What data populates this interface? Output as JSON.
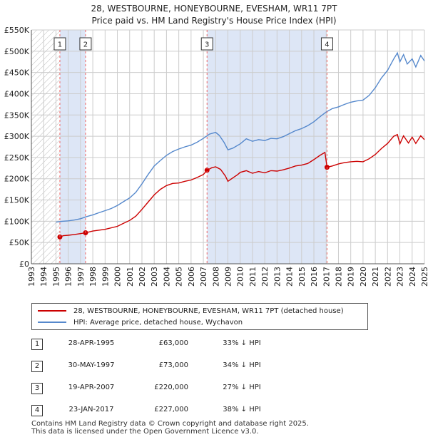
{
  "title_line1": "28, WESTBOURNE, HONEYBOURNE, EVESHAM, WR11 7PT",
  "title_line2": "Price paid vs. HM Land Registry's House Price Index (HPI)",
  "colors": {
    "property": "#cc0000",
    "hpi": "#5588cc",
    "shade": "#dde6f6",
    "grid": "#cccccc",
    "marker_line": "#ee6666"
  },
  "chart_data": {
    "type": "line",
    "xlim": [
      1993,
      2025
    ],
    "ylim": [
      0,
      550000
    ],
    "x_ticks": [
      1993,
      1994,
      1995,
      1996,
      1997,
      1998,
      1999,
      2000,
      2001,
      2002,
      2003,
      2004,
      2005,
      2006,
      2007,
      2008,
      2009,
      2010,
      2011,
      2012,
      2013,
      2014,
      2015,
      2016,
      2017,
      2018,
      2019,
      2020,
      2021,
      2022,
      2023,
      2024,
      2025
    ],
    "y_ticks": [
      {
        "value": 0,
        "label": "£0"
      },
      {
        "value": 50000,
        "label": "£50K"
      },
      {
        "value": 100000,
        "label": "£100K"
      },
      {
        "value": 150000,
        "label": "£150K"
      },
      {
        "value": 200000,
        "label": "£200K"
      },
      {
        "value": 250000,
        "label": "£250K"
      },
      {
        "value": 300000,
        "label": "£300K"
      },
      {
        "value": 350000,
        "label": "£350K"
      },
      {
        "value": 400000,
        "label": "£400K"
      },
      {
        "value": 450000,
        "label": "£450K"
      },
      {
        "value": 500000,
        "label": "£500K"
      },
      {
        "value": 550000,
        "label": "£550K"
      }
    ],
    "hatch_until": 1995.32,
    "shaded_regions": [
      [
        1995.32,
        1997.41
      ],
      [
        2007.3,
        2017.07
      ]
    ],
    "series": [
      {
        "name": "property",
        "points": [
          [
            1995.32,
            63000
          ],
          [
            1995.6,
            66000
          ],
          [
            1996,
            67000
          ],
          [
            1996.5,
            69000
          ],
          [
            1997,
            71000
          ],
          [
            1997.41,
            73000
          ],
          [
            1998,
            77000
          ],
          [
            1999,
            81000
          ],
          [
            2000,
            88000
          ],
          [
            2000.5,
            95000
          ],
          [
            2001,
            102000
          ],
          [
            2001.5,
            112000
          ],
          [
            2002,
            128000
          ],
          [
            2002.5,
            145000
          ],
          [
            2003,
            162000
          ],
          [
            2003.5,
            175000
          ],
          [
            2004,
            184000
          ],
          [
            2004.5,
            189000
          ],
          [
            2005,
            190000
          ],
          [
            2005.5,
            194000
          ],
          [
            2006,
            197000
          ],
          [
            2006.5,
            203000
          ],
          [
            2007,
            210000
          ],
          [
            2007.3,
            220000
          ],
          [
            2007.7,
            226000
          ],
          [
            2008,
            228000
          ],
          [
            2008.4,
            222000
          ],
          [
            2008.8,
            206000
          ],
          [
            2009,
            194000
          ],
          [
            2009.3,
            200000
          ],
          [
            2009.8,
            210000
          ],
          [
            2010,
            215000
          ],
          [
            2010.5,
            219000
          ],
          [
            2011,
            213000
          ],
          [
            2011.5,
            217000
          ],
          [
            2012,
            214000
          ],
          [
            2012.5,
            219000
          ],
          [
            2013,
            218000
          ],
          [
            2013.5,
            221000
          ],
          [
            2014,
            225000
          ],
          [
            2014.5,
            230000
          ],
          [
            2015,
            232000
          ],
          [
            2015.5,
            236000
          ],
          [
            2016,
            245000
          ],
          [
            2016.5,
            255000
          ],
          [
            2016.9,
            262000
          ],
          [
            2017.07,
            227000
          ],
          [
            2017.5,
            230000
          ],
          [
            2018,
            235000
          ],
          [
            2018.5,
            238000
          ],
          [
            2019,
            240000
          ],
          [
            2019.5,
            241000
          ],
          [
            2020,
            240000
          ],
          [
            2020.5,
            247000
          ],
          [
            2021,
            257000
          ],
          [
            2021.5,
            271000
          ],
          [
            2022,
            283000
          ],
          [
            2022.5,
            300000
          ],
          [
            2022.8,
            304000
          ],
          [
            2023,
            282000
          ],
          [
            2023.3,
            301000
          ],
          [
            2023.7,
            284000
          ],
          [
            2024,
            298000
          ],
          [
            2024.3,
            283000
          ],
          [
            2024.7,
            301000
          ],
          [
            2025,
            292000
          ]
        ]
      },
      {
        "name": "hpi",
        "points": [
          [
            1995,
            98000
          ],
          [
            1995.5,
            100000
          ],
          [
            1996,
            101000
          ],
          [
            1996.5,
            103000
          ],
          [
            1997,
            106000
          ],
          [
            1997.5,
            111000
          ],
          [
            1998,
            115000
          ],
          [
            1998.5,
            120000
          ],
          [
            1999,
            125000
          ],
          [
            1999.5,
            130000
          ],
          [
            2000,
            137000
          ],
          [
            2000.5,
            146000
          ],
          [
            2001,
            155000
          ],
          [
            2001.5,
            168000
          ],
          [
            2002,
            188000
          ],
          [
            2002.5,
            210000
          ],
          [
            2003,
            230000
          ],
          [
            2003.5,
            243000
          ],
          [
            2004,
            255000
          ],
          [
            2004.5,
            264000
          ],
          [
            2005,
            270000
          ],
          [
            2005.5,
            275000
          ],
          [
            2006,
            279000
          ],
          [
            2006.5,
            286000
          ],
          [
            2007,
            295000
          ],
          [
            2007.5,
            305000
          ],
          [
            2008,
            309000
          ],
          [
            2008.3,
            302000
          ],
          [
            2008.7,
            285000
          ],
          [
            2009,
            268000
          ],
          [
            2009.4,
            272000
          ],
          [
            2010,
            282000
          ],
          [
            2010.5,
            294000
          ],
          [
            2011,
            288000
          ],
          [
            2011.5,
            292000
          ],
          [
            2012,
            290000
          ],
          [
            2012.5,
            295000
          ],
          [
            2013,
            294000
          ],
          [
            2013.5,
            299000
          ],
          [
            2014,
            306000
          ],
          [
            2014.5,
            313000
          ],
          [
            2015,
            318000
          ],
          [
            2015.5,
            325000
          ],
          [
            2016,
            334000
          ],
          [
            2016.5,
            346000
          ],
          [
            2017,
            357000
          ],
          [
            2017.5,
            365000
          ],
          [
            2018,
            369000
          ],
          [
            2018.5,
            375000
          ],
          [
            2019,
            380000
          ],
          [
            2019.5,
            383000
          ],
          [
            2020,
            385000
          ],
          [
            2020.5,
            396000
          ],
          [
            2021,
            414000
          ],
          [
            2021.5,
            437000
          ],
          [
            2022,
            455000
          ],
          [
            2022.5,
            482000
          ],
          [
            2022.8,
            496000
          ],
          [
            2023,
            475000
          ],
          [
            2023.3,
            492000
          ],
          [
            2023.6,
            470000
          ],
          [
            2024,
            482000
          ],
          [
            2024.3,
            463000
          ],
          [
            2024.7,
            490000
          ],
          [
            2025,
            477000
          ]
        ]
      }
    ],
    "sales": [
      {
        "id": "1",
        "x": 1995.32,
        "price": 63000
      },
      {
        "id": "2",
        "x": 1997.41,
        "price": 73000
      },
      {
        "id": "3",
        "x": 2007.3,
        "price": 220000
      },
      {
        "id": "4",
        "x": 2017.07,
        "price": 227000
      }
    ]
  },
  "legend": {
    "property_label": "28, WESTBOURNE, HONEYBOURNE, EVESHAM, WR11 7PT (detached house)",
    "hpi_label": "HPI: Average price, detached house, Wychavon"
  },
  "transactions": [
    {
      "id": "1",
      "date": "28-APR-1995",
      "price": "£63,000",
      "hpi": "33% ↓ HPI"
    },
    {
      "id": "2",
      "date": "30-MAY-1997",
      "price": "£73,000",
      "hpi": "34% ↓ HPI"
    },
    {
      "id": "3",
      "date": "19-APR-2007",
      "price": "£220,000",
      "hpi": "27% ↓ HPI"
    },
    {
      "id": "4",
      "date": "23-JAN-2017",
      "price": "£227,000",
      "hpi": "38% ↓ HPI"
    }
  ],
  "footer_line1": "Contains HM Land Registry data © Crown copyright and database right 2025.",
  "footer_line2": "This data is licensed under the Open Government Licence v3.0."
}
